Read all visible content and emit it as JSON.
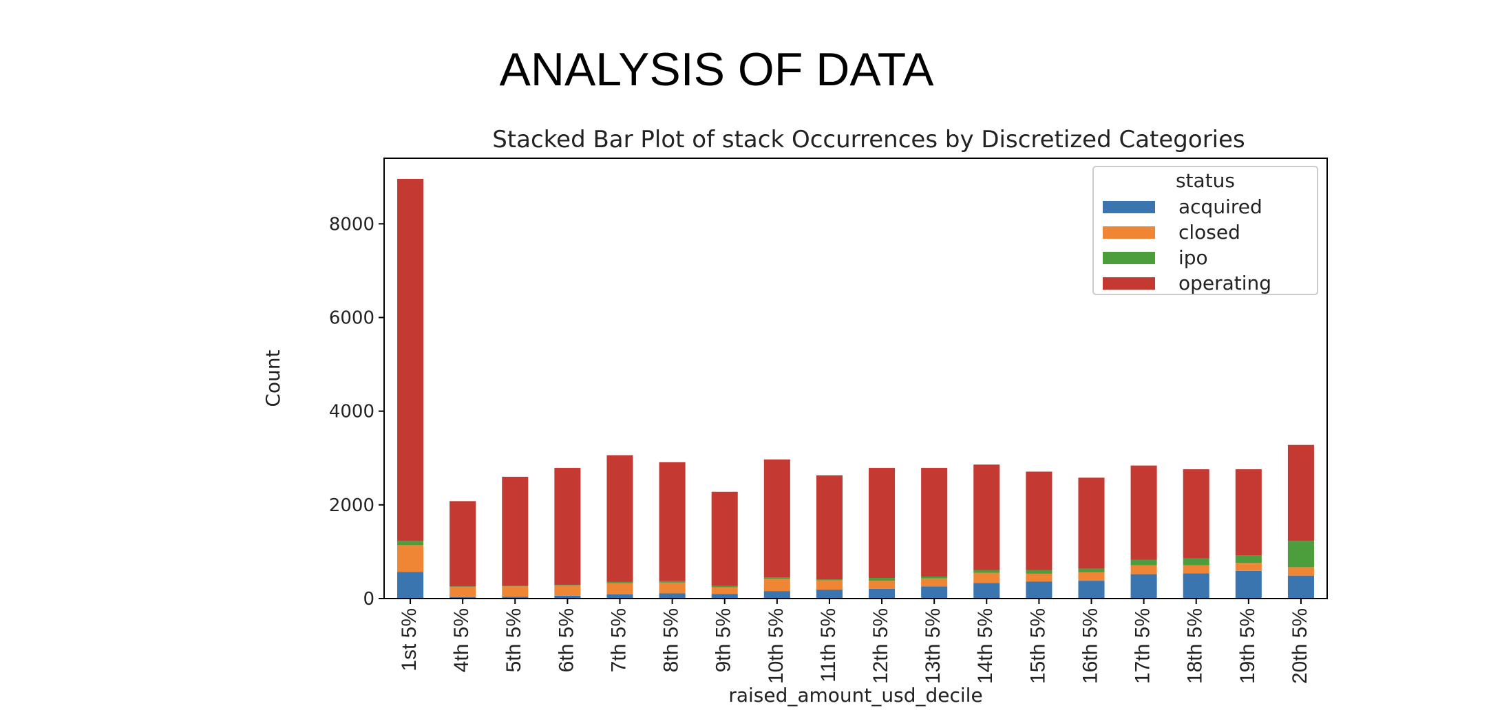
{
  "slide": {
    "title": "ANALYSIS OF DATA"
  },
  "chart_data": {
    "type": "bar",
    "stacked": true,
    "title": "Stacked Bar Plot of stack Occurrences by Discretized Categories",
    "xlabel": "raised_amount_usd_decile",
    "ylabel": "Count",
    "ylim": [
      0,
      9400
    ],
    "yticks": [
      0,
      2000,
      4000,
      6000,
      8000
    ],
    "grid": false,
    "legend": {
      "title": "status",
      "placement": "top-right"
    },
    "categories": [
      "1st 5%",
      "4th 5%",
      "5th 5%",
      "6th 5%",
      "7th 5%",
      "8th 5%",
      "9th 5%",
      "10th 5%",
      "11th 5%",
      "12th 5%",
      "13th 5%",
      "14th 5%",
      "15th 5%",
      "16th 5%",
      "17th 5%",
      "18th 5%",
      "19th 5%",
      "20th 5%"
    ],
    "series": [
      {
        "name": "acquired",
        "color": "#3a75b0",
        "values": [
          570,
          30,
          40,
          60,
          90,
          110,
          100,
          160,
          190,
          210,
          260,
          330,
          360,
          380,
          520,
          540,
          590,
          490
        ]
      },
      {
        "name": "closed",
        "color": "#ef8636",
        "values": [
          570,
          220,
          220,
          220,
          240,
          230,
          140,
          260,
          200,
          170,
          170,
          220,
          170,
          180,
          190,
          170,
          170,
          180
        ]
      },
      {
        "name": "ipo",
        "color": "#4b9e3b",
        "values": [
          90,
          10,
          10,
          10,
          30,
          30,
          30,
          30,
          20,
          60,
          40,
          60,
          80,
          80,
          120,
          150,
          160,
          560
        ]
      },
      {
        "name": "operating",
        "color": "#c43931",
        "values": [
          7730,
          1820,
          2330,
          2500,
          2700,
          2540,
          2010,
          2520,
          2220,
          2350,
          2320,
          2250,
          2100,
          1940,
          2010,
          1900,
          1840,
          2050
        ]
      }
    ]
  }
}
